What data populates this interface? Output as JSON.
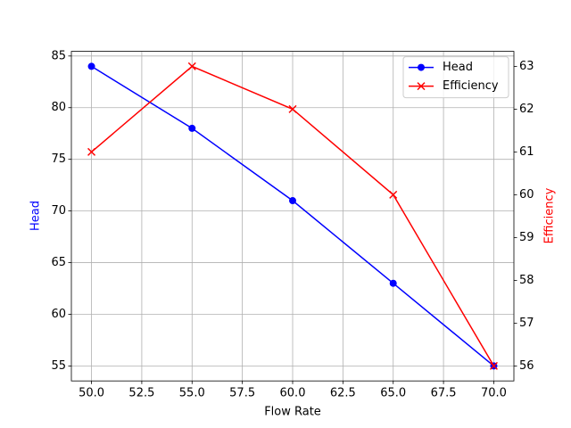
{
  "chart_data": {
    "type": "line",
    "xlabel": "Flow Rate",
    "ylabel": "Head",
    "y2label": "Efficiency",
    "x": [
      50,
      55,
      60,
      65,
      70
    ],
    "series": [
      {
        "name": "Head",
        "color": "#0000ff",
        "marker": "o",
        "values": [
          84,
          78,
          71,
          63,
          55
        ]
      },
      {
        "name": "Efficiency",
        "color": "#ff0000",
        "marker": "x",
        "axis": "y2",
        "values": [
          61,
          63,
          62,
          60,
          56
        ]
      }
    ],
    "xlim": [
      49,
      71
    ],
    "xticks": [
      {
        "value": 50,
        "label": "50.0"
      },
      {
        "value": 52.5,
        "label": "52.5"
      },
      {
        "value": 55,
        "label": "55.0"
      },
      {
        "value": 57.5,
        "label": "57.5"
      },
      {
        "value": 60,
        "label": "60.0"
      },
      {
        "value": 62.5,
        "label": "62.5"
      },
      {
        "value": 65,
        "label": "65.0"
      },
      {
        "value": 67.5,
        "label": "67.5"
      },
      {
        "value": 70,
        "label": "70.0"
      }
    ],
    "ylim": [
      53.55,
      85.45
    ],
    "yticks": [
      55,
      60,
      65,
      70,
      75,
      80,
      85
    ],
    "y2lim": [
      55.65,
      63.35
    ],
    "y2ticks": [
      56,
      57,
      58,
      59,
      60,
      61,
      62,
      63
    ],
    "grid": true,
    "legend": "upper right"
  }
}
